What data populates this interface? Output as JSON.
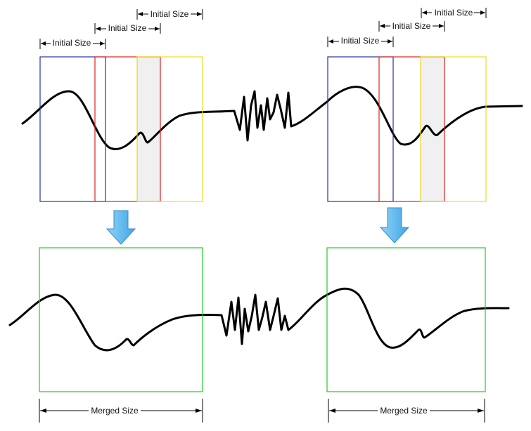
{
  "labels": {
    "initial_size": "Initial Size",
    "merged_size": "Merged Size"
  },
  "colors": {
    "window_1": "#2233aa",
    "window_2": "#dd2222",
    "window_3": "#eedd22",
    "merged_window": "#22cc22",
    "signal": "#000000",
    "down_arrow": "#5bb8ee"
  },
  "icons": [
    "down-arrow-icon",
    "dimension-arrow-icon"
  ]
}
